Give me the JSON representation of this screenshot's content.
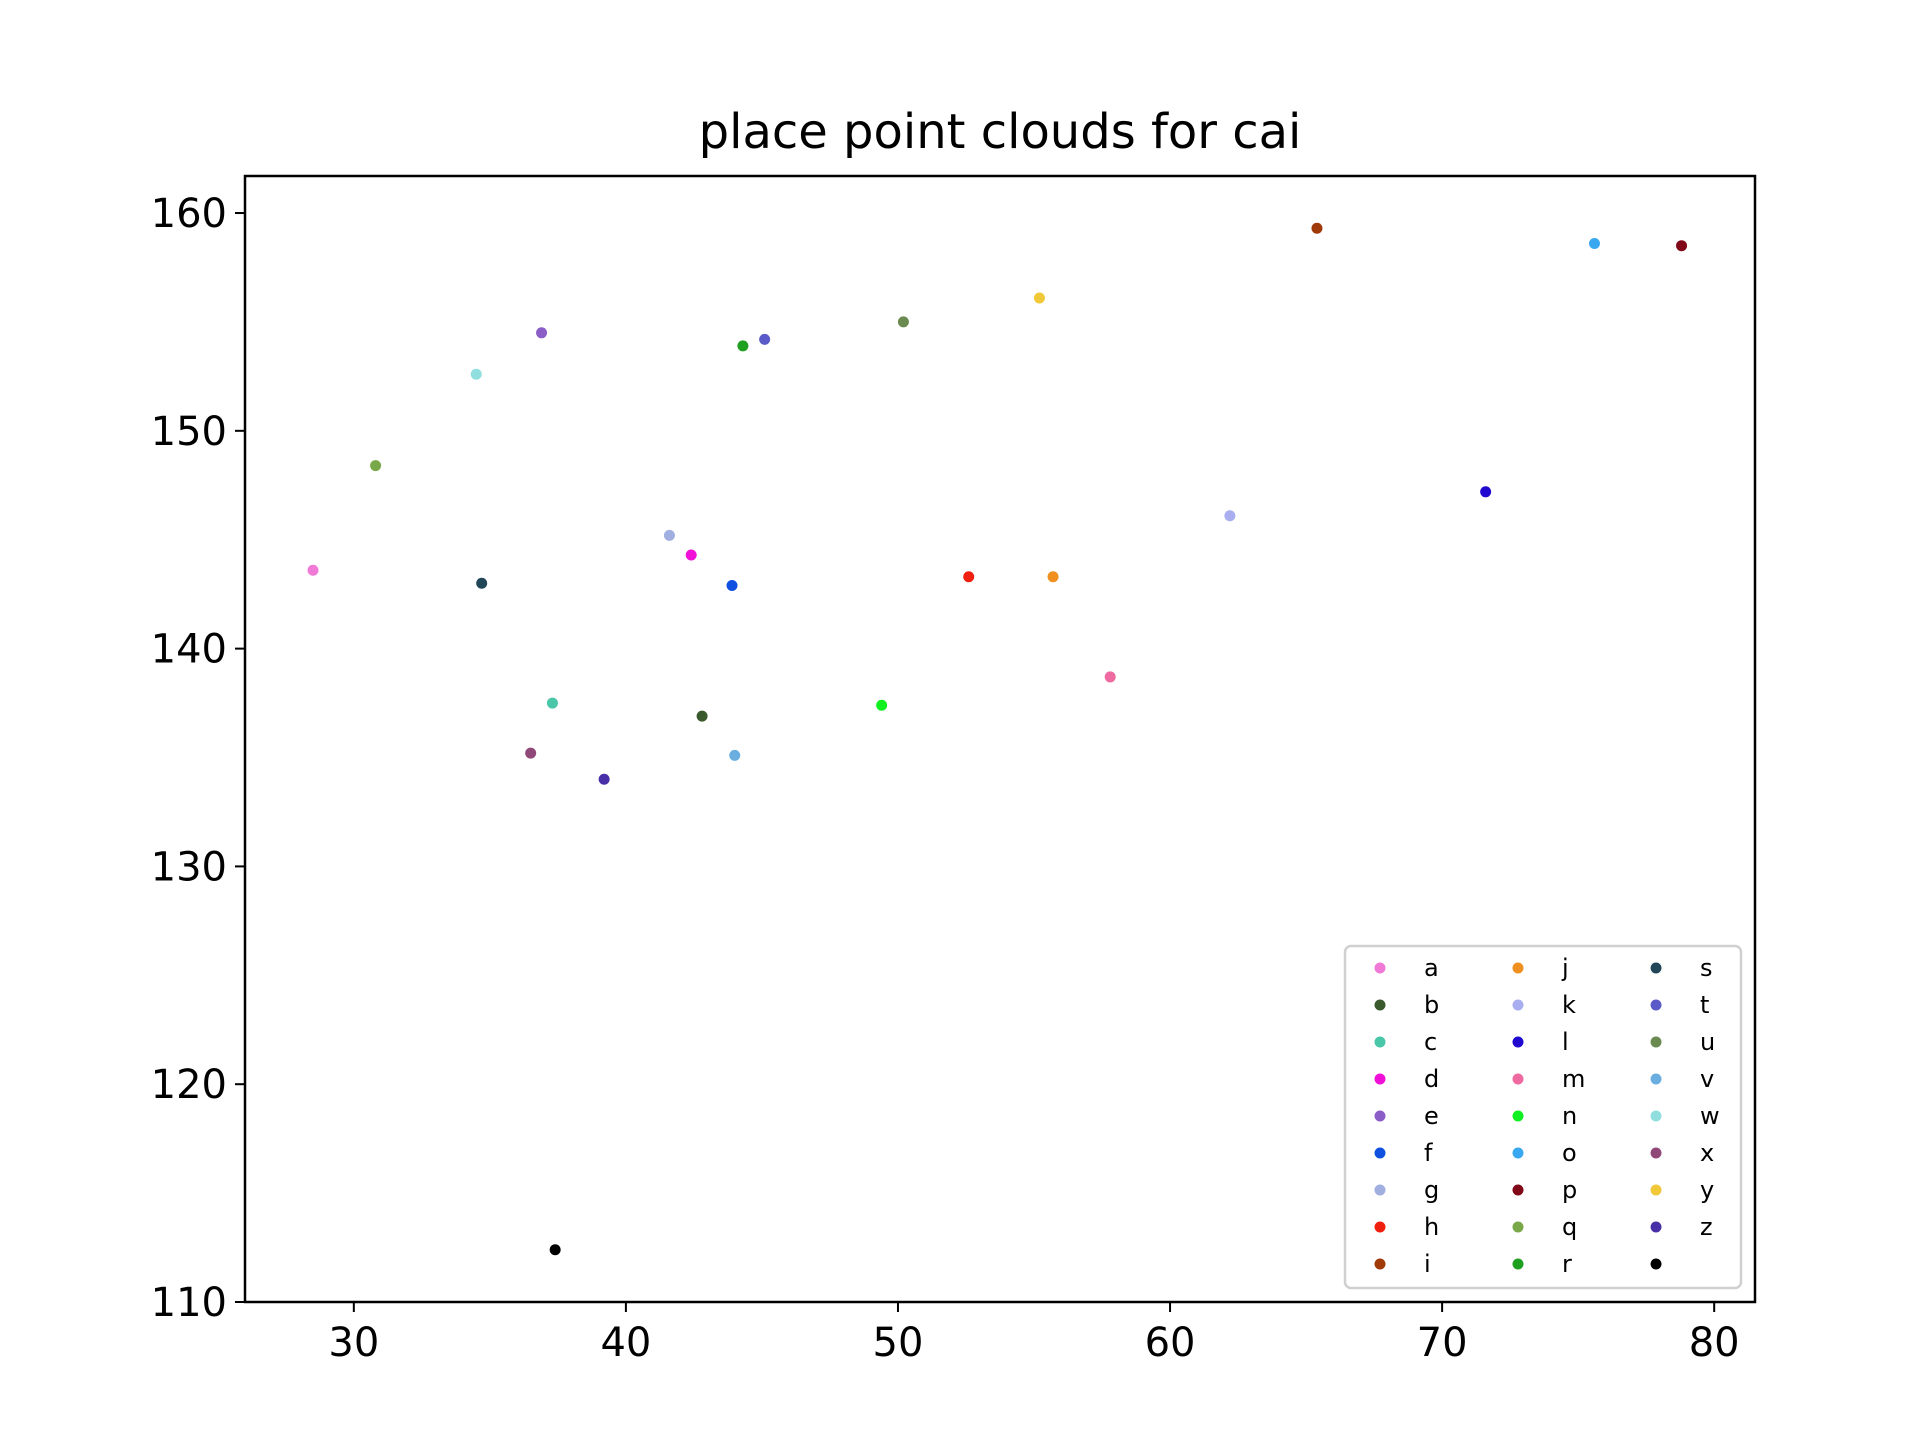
{
  "chart_data": {
    "type": "scatter",
    "title": "place point clouds for cai",
    "xlabel": "",
    "ylabel": "",
    "xlim": [
      26,
      81.5
    ],
    "ylim": [
      110,
      161.7
    ],
    "xticks": [
      30,
      40,
      50,
      60,
      70,
      80
    ],
    "yticks": [
      110,
      120,
      130,
      140,
      150,
      160
    ],
    "grid": false,
    "legend": {
      "position": "lower right",
      "columns": 3
    },
    "series": [
      {
        "name": "a",
        "color": "#f07ad6",
        "points": [
          [
            28.5,
            143.6
          ]
        ]
      },
      {
        "name": "b",
        "color": "#3a5a2e",
        "points": [
          [
            42.8,
            136.9
          ]
        ]
      },
      {
        "name": "c",
        "color": "#4ac6a8",
        "points": [
          [
            37.3,
            137.5
          ]
        ]
      },
      {
        "name": "d",
        "color": "#f010d8",
        "points": [
          [
            42.4,
            144.3
          ]
        ]
      },
      {
        "name": "e",
        "color": "#8a5ec6",
        "points": [
          [
            36.9,
            154.5
          ]
        ]
      },
      {
        "name": "f",
        "color": "#1050e0",
        "points": [
          [
            43.9,
            142.9
          ]
        ]
      },
      {
        "name": "g",
        "color": "#a0aee0",
        "points": [
          [
            41.6,
            145.2
          ]
        ]
      },
      {
        "name": "h",
        "color": "#f02010",
        "points": [
          [
            52.6,
            143.3
          ]
        ]
      },
      {
        "name": "i",
        "color": "#a03a08",
        "points": [
          [
            65.4,
            159.3
          ]
        ]
      },
      {
        "name": "j",
        "color": "#f09020",
        "points": [
          [
            55.7,
            143.3
          ]
        ]
      },
      {
        "name": "k",
        "color": "#a8aef0",
        "points": [
          [
            62.2,
            146.1
          ]
        ]
      },
      {
        "name": "l",
        "color": "#2008d0",
        "points": [
          [
            71.6,
            147.2
          ]
        ]
      },
      {
        "name": "m",
        "color": "#ee6aa0",
        "points": [
          [
            57.8,
            138.7
          ]
        ]
      },
      {
        "name": "n",
        "color": "#10f020",
        "points": [
          [
            49.4,
            137.4
          ]
        ]
      },
      {
        "name": "o",
        "color": "#38a8f0",
        "points": [
          [
            75.6,
            158.6
          ]
        ]
      },
      {
        "name": "p",
        "color": "#800818",
        "points": [
          [
            78.8,
            158.5
          ]
        ]
      },
      {
        "name": "q",
        "color": "#78a848",
        "points": [
          [
            30.8,
            148.4
          ]
        ]
      },
      {
        "name": "r",
        "color": "#20a020",
        "points": [
          [
            44.3,
            153.9
          ]
        ]
      },
      {
        "name": "s",
        "color": "#204658",
        "points": [
          [
            34.7,
            143.0
          ]
        ]
      },
      {
        "name": "t",
        "color": "#5a5ac8",
        "points": [
          [
            45.1,
            154.2
          ]
        ]
      },
      {
        "name": "u",
        "color": "#6a8a50",
        "points": [
          [
            50.2,
            155.0
          ]
        ]
      },
      {
        "name": "v",
        "color": "#6aaee0",
        "points": [
          [
            44.0,
            135.1
          ]
        ]
      },
      {
        "name": "w",
        "color": "#90dede",
        "points": [
          [
            34.5,
            152.6
          ]
        ]
      },
      {
        "name": "x",
        "color": "#904878",
        "points": [
          [
            36.5,
            135.2
          ]
        ]
      },
      {
        "name": "y",
        "color": "#f0c838",
        "points": [
          [
            55.2,
            156.1
          ]
        ]
      },
      {
        "name": "z",
        "color": "#4a30a8",
        "points": [
          [
            39.2,
            134.0
          ]
        ]
      },
      {
        "name": "",
        "color": "#000000",
        "points": [
          [
            37.4,
            112.4
          ]
        ]
      }
    ]
  }
}
